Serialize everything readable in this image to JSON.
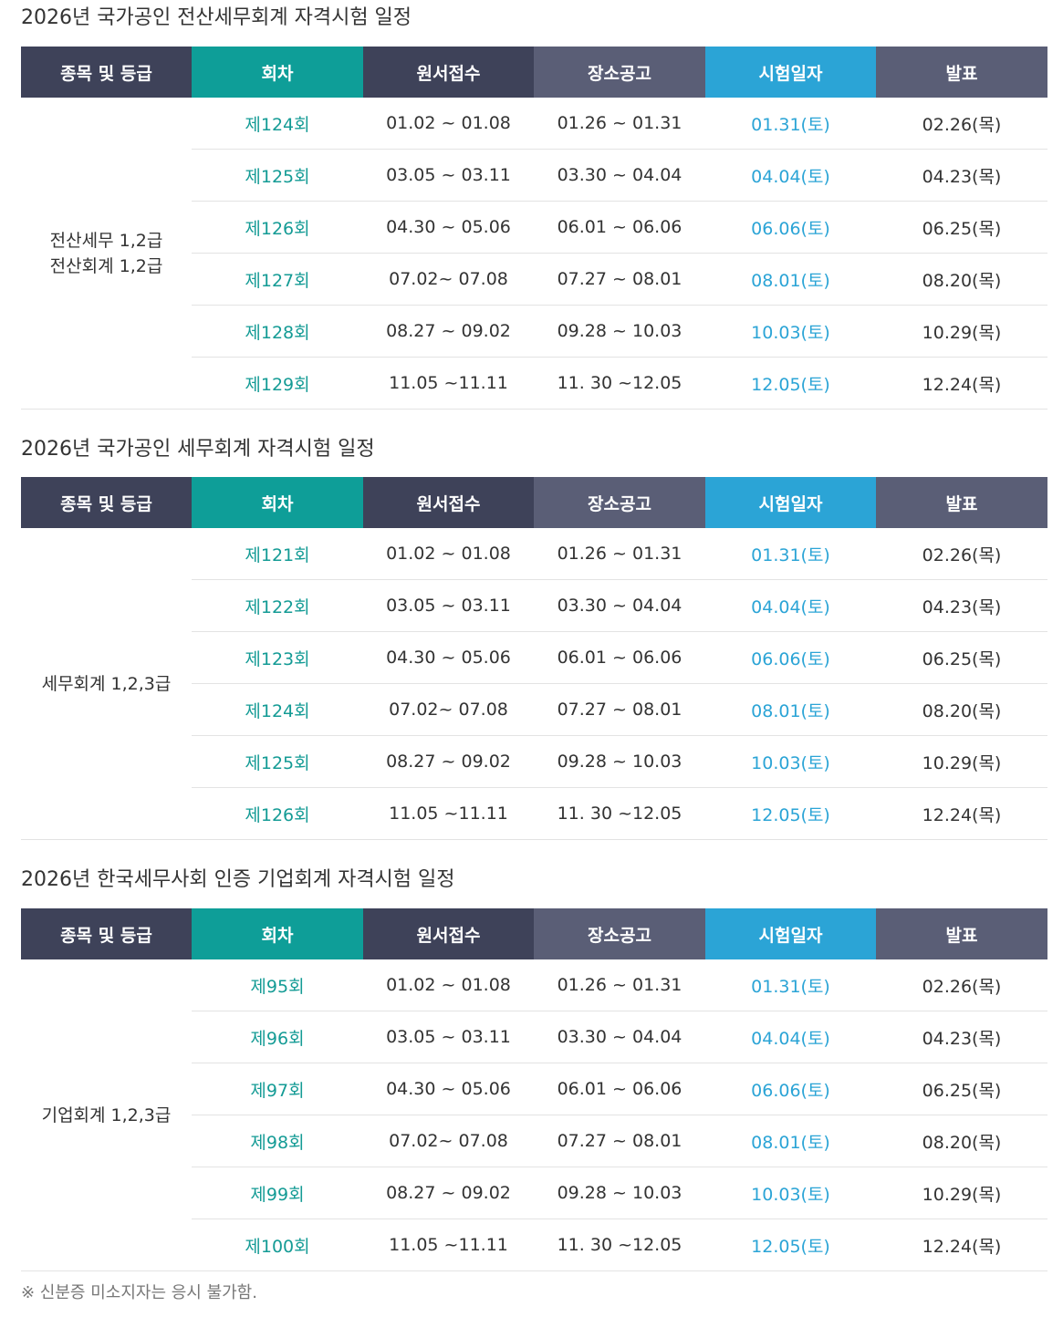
{
  "headers": [
    "종목 및 등급",
    "회차",
    "원서접수",
    "장소공고",
    "시험일자",
    "발표"
  ],
  "colors": {
    "header_dark": "#3e4259",
    "header_teal": "#0e9e98",
    "header_slate": "#5a5e76",
    "header_blue": "#2ba4d6",
    "round_text": "#149b95",
    "exam_text": "#2ba4d6"
  },
  "sections": [
    {
      "title": "2026년 국가공인 전산세무회계 자격시험 일정",
      "category_lines": [
        "전산세무 1,2급",
        "전산회계 1,2급"
      ],
      "rows": [
        {
          "round": "제124회",
          "apply": "01.02 ~ 01.08",
          "venue": "01.26 ~ 01.31",
          "exam": "01.31(토)",
          "announce": "02.26(목)"
        },
        {
          "round": "제125회",
          "apply": "03.05 ~ 03.11",
          "venue": "03.30 ~ 04.04",
          "exam": "04.04(토)",
          "announce": "04.23(목)"
        },
        {
          "round": "제126회",
          "apply": "04.30 ~ 05.06",
          "venue": "06.01 ~ 06.06",
          "exam": "06.06(토)",
          "announce": "06.25(목)"
        },
        {
          "round": "제127회",
          "apply": "07.02~ 07.08",
          "venue": "07.27 ~ 08.01",
          "exam": "08.01(토)",
          "announce": "08.20(목)"
        },
        {
          "round": "제128회",
          "apply": "08.27 ~ 09.02",
          "venue": "09.28 ~ 10.03",
          "exam": "10.03(토)",
          "announce": "10.29(목)"
        },
        {
          "round": "제129회",
          "apply": "11.05 ~11.11",
          "venue": "11. 30 ~12.05",
          "exam": "12.05(토)",
          "announce": "12.24(목)"
        }
      ]
    },
    {
      "title": "2026년 국가공인 세무회계 자격시험 일정",
      "category_lines": [
        "세무회계 1,2,3급"
      ],
      "rows": [
        {
          "round": "제121회",
          "apply": "01.02 ~ 01.08",
          "venue": "01.26 ~ 01.31",
          "exam": "01.31(토)",
          "announce": "02.26(목)"
        },
        {
          "round": "제122회",
          "apply": "03.05 ~ 03.11",
          "venue": "03.30 ~ 04.04",
          "exam": "04.04(토)",
          "announce": "04.23(목)"
        },
        {
          "round": "제123회",
          "apply": "04.30 ~ 05.06",
          "venue": "06.01 ~ 06.06",
          "exam": "06.06(토)",
          "announce": "06.25(목)"
        },
        {
          "round": "제124회",
          "apply": "07.02~ 07.08",
          "venue": "07.27 ~ 08.01",
          "exam": "08.01(토)",
          "announce": "08.20(목)"
        },
        {
          "round": "제125회",
          "apply": "08.27 ~ 09.02",
          "venue": "09.28 ~ 10.03",
          "exam": "10.03(토)",
          "announce": "10.29(목)"
        },
        {
          "round": "제126회",
          "apply": "11.05 ~11.11",
          "venue": "11. 30 ~12.05",
          "exam": "12.05(토)",
          "announce": "12.24(목)"
        }
      ]
    },
    {
      "title": "2026년 한국세무사회 인증 기업회계 자격시험 일정",
      "category_lines": [
        "기업회계 1,2,3급"
      ],
      "rows": [
        {
          "round": "제95회",
          "apply": "01.02 ~ 01.08",
          "venue": "01.26 ~ 01.31",
          "exam": "01.31(토)",
          "announce": "02.26(목)"
        },
        {
          "round": "제96회",
          "apply": "03.05 ~ 03.11",
          "venue": "03.30 ~ 04.04",
          "exam": "04.04(토)",
          "announce": "04.23(목)"
        },
        {
          "round": "제97회",
          "apply": "04.30 ~ 05.06",
          "venue": "06.01 ~ 06.06",
          "exam": "06.06(토)",
          "announce": "06.25(목)"
        },
        {
          "round": "제98회",
          "apply": "07.02~ 07.08",
          "venue": "07.27 ~ 08.01",
          "exam": "08.01(토)",
          "announce": "08.20(목)"
        },
        {
          "round": "제99회",
          "apply": "08.27 ~ 09.02",
          "venue": "09.28 ~ 10.03",
          "exam": "10.03(토)",
          "announce": "10.29(목)"
        },
        {
          "round": "제100회",
          "apply": "11.05 ~11.11",
          "venue": "11. 30 ~12.05",
          "exam": "12.05(토)",
          "announce": "12.24(목)"
        }
      ]
    }
  ],
  "note": "※ 신분증 미소지자는 응시 불가함."
}
